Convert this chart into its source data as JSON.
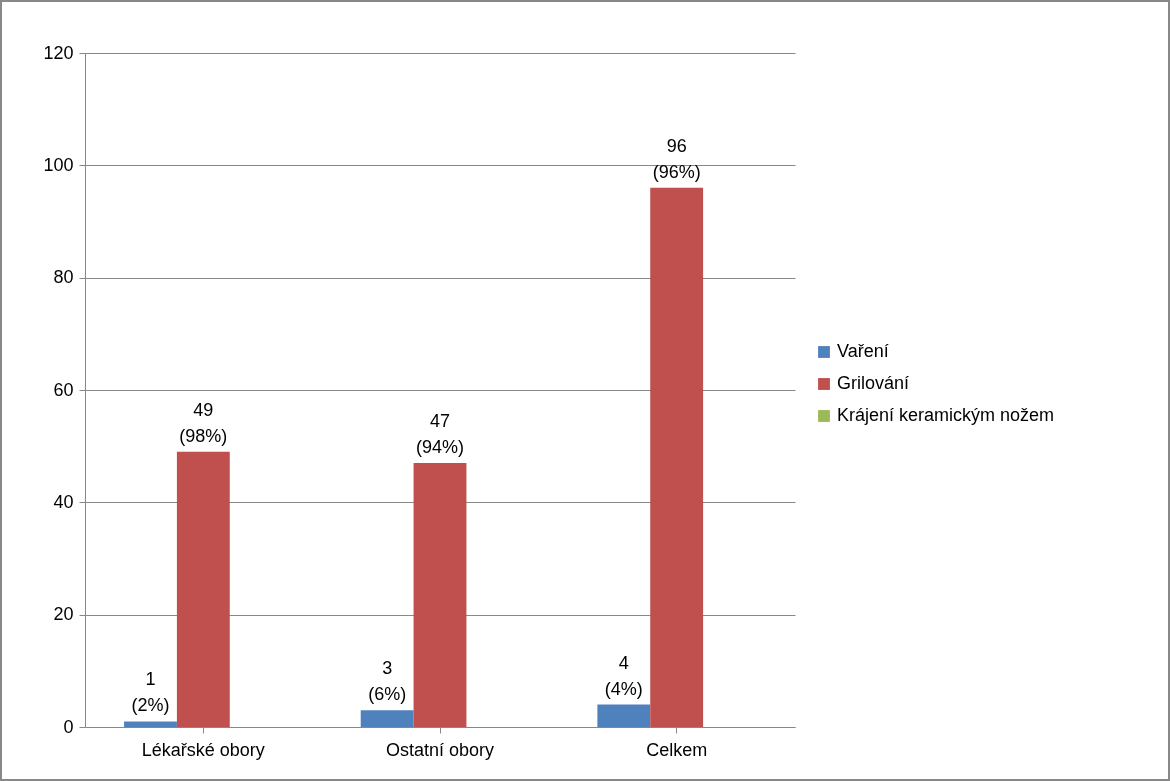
{
  "chart_data": {
    "type": "bar",
    "categories": [
      "Lékařské obory",
      "Ostatní obory",
      "Celkem"
    ],
    "series": [
      {
        "name": "Vaření",
        "color": "#4f81bd",
        "values": [
          1,
          3,
          4
        ],
        "value_labels": [
          "1\n(2%)",
          "3\n(6%)",
          "4\n(4%)"
        ]
      },
      {
        "name": "Grilování",
        "color": "#c0504d",
        "values": [
          49,
          47,
          96
        ],
        "value_labels": [
          "49\n(98%)",
          "47\n(94%)",
          "96\n(96%)"
        ]
      },
      {
        "name": "Krájení keramickým nožem",
        "color": "#9bbb59",
        "values": [
          0,
          0,
          0
        ]
      }
    ],
    "ylim": [
      0,
      120
    ],
    "yticks": [
      0,
      20,
      40,
      60,
      80,
      100,
      120
    ],
    "grid": "y",
    "legend": "right"
  }
}
